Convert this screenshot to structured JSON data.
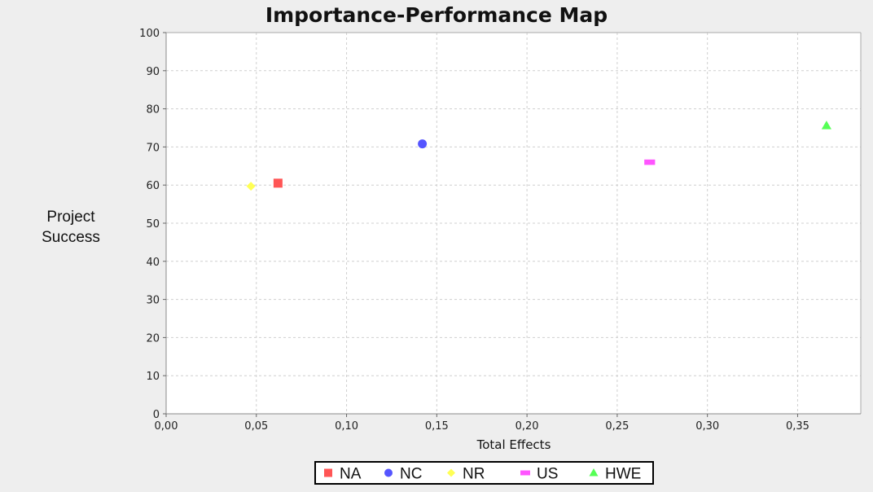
{
  "chart_data": {
    "type": "scatter",
    "title": "Importance-Performance Map",
    "xlabel": "Total Effects",
    "ylabel": "Project Success",
    "xlim": [
      0.0,
      0.385
    ],
    "ylim": [
      0,
      100
    ],
    "x_ticks": [
      "0,00",
      "0,05",
      "0,10",
      "0,15",
      "0,20",
      "0,25",
      "0,30",
      "0,35"
    ],
    "x_tick_values": [
      0.0,
      0.05,
      0.1,
      0.15,
      0.2,
      0.25,
      0.3,
      0.35
    ],
    "y_ticks": [
      "0",
      "10",
      "20",
      "30",
      "40",
      "50",
      "60",
      "70",
      "80",
      "90",
      "100"
    ],
    "y_tick_values": [
      0,
      10,
      20,
      30,
      40,
      50,
      60,
      70,
      80,
      90,
      100
    ],
    "grid": true,
    "legend_position": "bottom-center",
    "series": [
      {
        "name": "NA",
        "marker": "square",
        "color": "#ff5555",
        "points": [
          {
            "x": 0.062,
            "y": 60.5
          }
        ]
      },
      {
        "name": "NC",
        "marker": "circle",
        "color": "#5555ff",
        "points": [
          {
            "x": 0.142,
            "y": 70.8
          }
        ]
      },
      {
        "name": "NR",
        "marker": "diamond",
        "color": "#ffff55",
        "points": [
          {
            "x": 0.047,
            "y": 59.7
          }
        ]
      },
      {
        "name": "US",
        "marker": "rect",
        "color": "#ff55ff",
        "points": [
          {
            "x": 0.268,
            "y": 66.0
          }
        ]
      },
      {
        "name": "HWE",
        "marker": "triangle",
        "color": "#55ff55",
        "points": [
          {
            "x": 0.366,
            "y": 75.6
          }
        ]
      }
    ]
  }
}
